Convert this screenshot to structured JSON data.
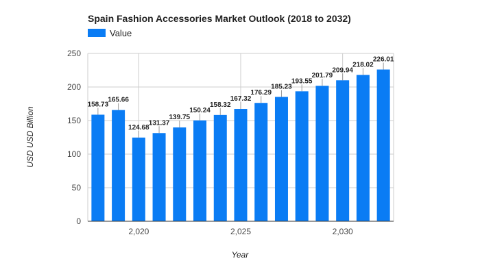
{
  "chart_data": {
    "type": "bar",
    "title": "Spain Fashion Accessories Market Outlook (2018 to 2032)",
    "xlabel": "Year",
    "ylabel": "USD USD Billion",
    "x": [
      2018,
      2019,
      2020,
      2021,
      2022,
      2023,
      2024,
      2025,
      2026,
      2027,
      2028,
      2029,
      2030,
      2031,
      2032
    ],
    "series": [
      {
        "name": "Value",
        "color": "#0a7cf4",
        "values": [
          158.73,
          165.66,
          124.68,
          131.37,
          139.75,
          150.24,
          158.32,
          167.32,
          176.29,
          185.23,
          193.55,
          201.79,
          209.94,
          218.02,
          226.01
        ],
        "labels": [
          "158.73",
          "165.66",
          "124.68",
          "131.37",
          "139.75",
          "150.24",
          "158.32",
          "167.32",
          "176.29",
          "185.23",
          "193.55",
          "201.79",
          "209.94",
          "218.02",
          "226.01"
        ]
      }
    ],
    "ylim": [
      0,
      250
    ],
    "yticks": [
      0,
      50,
      100,
      150,
      200,
      250
    ],
    "ytick_labels": [
      "0",
      "50",
      "100",
      "150",
      "200",
      "250"
    ],
    "xticks": [
      2020,
      2025,
      2030
    ],
    "xtick_labels": [
      "2,020",
      "2,025",
      "2,030"
    ],
    "grid": true,
    "legend_position": "top-left"
  }
}
